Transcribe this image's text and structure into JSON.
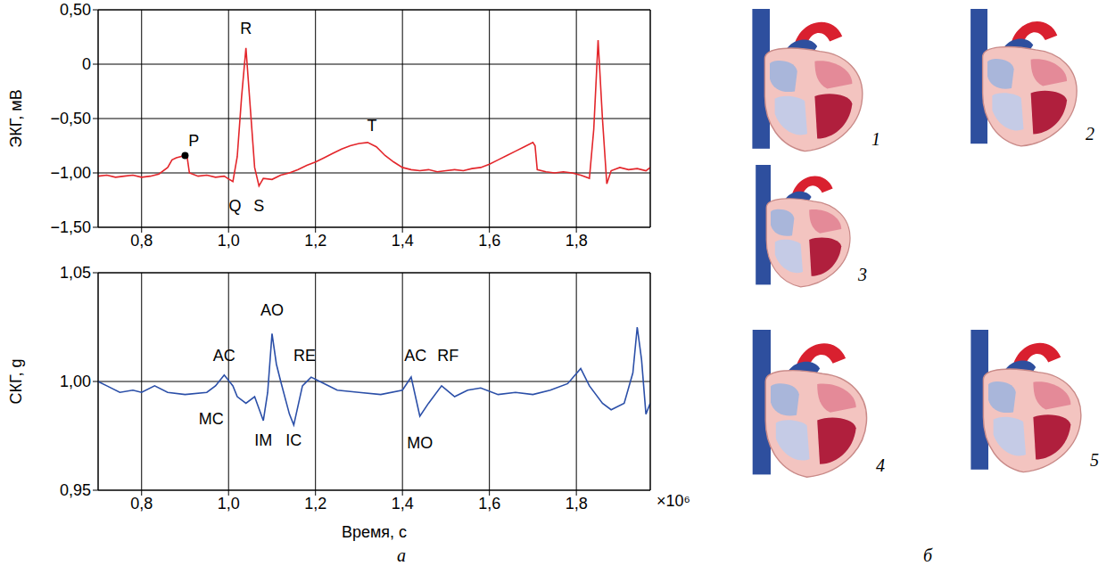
{
  "chart_data": [
    {
      "type": "line",
      "ylabel": "ЭКГ, мВ",
      "color": "#e3262b",
      "grid": true,
      "xlim": [
        0.7,
        1.97
      ],
      "xticks": [
        {
          "value": 0.8,
          "label": "0,8"
        },
        {
          "value": 1.0,
          "label": "1,0"
        },
        {
          "value": 1.2,
          "label": "1,2"
        },
        {
          "value": 1.4,
          "label": "1,4"
        },
        {
          "value": 1.6,
          "label": "1,6"
        },
        {
          "value": 1.8,
          "label": "1,8"
        }
      ],
      "ylim": [
        -1.5,
        0.5
      ],
      "yticks": [
        {
          "value": -1.5,
          "label": "−1,50"
        },
        {
          "value": -1.0,
          "label": "−1,00"
        },
        {
          "value": -0.5,
          "label": "−0,50"
        },
        0,
        {
          "value": 0.5,
          "label": "0,50"
        }
      ],
      "x": [
        0.7,
        0.72,
        0.74,
        0.76,
        0.78,
        0.8,
        0.82,
        0.84,
        0.86,
        0.87,
        0.88,
        0.9,
        0.905,
        0.91,
        0.93,
        0.95,
        0.97,
        0.99,
        1.01,
        1.02,
        1.03,
        1.04,
        1.05,
        1.06,
        1.07,
        1.08,
        1.1,
        1.12,
        1.14,
        1.16,
        1.18,
        1.2,
        1.22,
        1.24,
        1.26,
        1.28,
        1.3,
        1.32,
        1.34,
        1.36,
        1.38,
        1.4,
        1.42,
        1.44,
        1.46,
        1.48,
        1.5,
        1.52,
        1.54,
        1.56,
        1.58,
        1.6,
        1.62,
        1.64,
        1.66,
        1.68,
        1.7,
        1.705,
        1.71,
        1.73,
        1.75,
        1.77,
        1.79,
        1.81,
        1.83,
        1.84,
        1.85,
        1.86,
        1.87,
        1.88,
        1.9,
        1.92,
        1.94,
        1.96,
        1.97
      ],
      "values": [
        -1.03,
        -1.02,
        -1.04,
        -1.03,
        -1.02,
        -1.04,
        -1.03,
        -1.01,
        -0.95,
        -0.88,
        -0.86,
        -0.84,
        -0.86,
        -1.0,
        -1.03,
        -1.02,
        -1.04,
        -1.03,
        -1.08,
        -0.85,
        -0.3,
        0.15,
        -0.4,
        -0.95,
        -1.12,
        -1.05,
        -1.06,
        -1.02,
        -1.0,
        -0.97,
        -0.93,
        -0.9,
        -0.86,
        -0.82,
        -0.78,
        -0.75,
        -0.73,
        -0.72,
        -0.76,
        -0.84,
        -0.9,
        -0.95,
        -0.97,
        -0.98,
        -0.97,
        -0.99,
        -0.98,
        -0.97,
        -0.98,
        -0.96,
        -0.95,
        -0.92,
        -0.88,
        -0.84,
        -0.8,
        -0.76,
        -0.72,
        -0.75,
        -0.97,
        -0.99,
        -1.0,
        -0.99,
        -1.0,
        -1.02,
        -1.05,
        -0.6,
        0.22,
        -0.5,
        -1.1,
        -0.98,
        -0.95,
        -0.97,
        -0.96,
        -0.98,
        -0.95
      ],
      "annotations": [
        {
          "text": "P",
          "x": 0.92,
          "y": -0.7,
          "point": [
            0.9,
            -0.84
          ]
        },
        {
          "text": "R",
          "x": 1.04,
          "y": 0.33
        },
        {
          "text": "Q",
          "x": 1.015,
          "y": -1.3
        },
        {
          "text": "S",
          "x": 1.07,
          "y": -1.3
        },
        {
          "text": "T",
          "x": 1.33,
          "y": -0.56
        }
      ]
    },
    {
      "type": "line",
      "xlabel": "Время, с",
      "ylabel": "СКГ, g",
      "color": "#2b4fa8",
      "grid": true,
      "x_multiplier": "×10⁶",
      "xlim": [
        0.7,
        1.97
      ],
      "xticks": [
        {
          "value": 0.8,
          "label": "0,8"
        },
        {
          "value": 1.0,
          "label": "1,0"
        },
        {
          "value": 1.2,
          "label": "1,2"
        },
        {
          "value": 1.4,
          "label": "1,4"
        },
        {
          "value": 1.6,
          "label": "1,6"
        },
        {
          "value": 1.8,
          "label": "1,8"
        }
      ],
      "ylim": [
        0.95,
        1.05
      ],
      "yticks": [
        {
          "value": 0.95,
          "label": "0,95"
        },
        {
          "value": 1.0,
          "label": "1,00"
        },
        {
          "value": 1.05,
          "label": "1,05"
        }
      ],
      "x": [
        0.7,
        0.72,
        0.75,
        0.78,
        0.8,
        0.83,
        0.86,
        0.9,
        0.95,
        0.97,
        0.99,
        1.01,
        1.02,
        1.04,
        1.06,
        1.08,
        1.09,
        1.1,
        1.11,
        1.12,
        1.14,
        1.15,
        1.17,
        1.19,
        1.21,
        1.25,
        1.3,
        1.35,
        1.4,
        1.42,
        1.44,
        1.46,
        1.49,
        1.52,
        1.55,
        1.58,
        1.62,
        1.66,
        1.7,
        1.74,
        1.78,
        1.81,
        1.83,
        1.86,
        1.88,
        1.91,
        1.93,
        1.94,
        1.95,
        1.96,
        1.97
      ],
      "values": [
        1.0,
        0.998,
        0.995,
        0.996,
        0.995,
        0.998,
        0.995,
        0.994,
        0.995,
        0.998,
        1.003,
        0.998,
        0.993,
        0.99,
        0.993,
        0.982,
        0.995,
        1.022,
        1.008,
        1.0,
        0.985,
        0.98,
        0.998,
        1.002,
        1.0,
        0.996,
        0.995,
        0.994,
        0.996,
        1.002,
        0.984,
        0.99,
        0.998,
        0.993,
        0.996,
        0.997,
        0.994,
        0.995,
        0.994,
        0.996,
        0.999,
        1.006,
        0.998,
        0.99,
        0.987,
        0.99,
        1.004,
        1.025,
        1.01,
        0.985,
        0.99
      ],
      "annotations": [
        {
          "text": "AC",
          "x": 0.99,
          "y": 1.012
        },
        {
          "text": "MC",
          "x": 0.96,
          "y": 0.983
        },
        {
          "text": "AO",
          "x": 1.1,
          "y": 1.033
        },
        {
          "text": "RE",
          "x": 1.175,
          "y": 1.012
        },
        {
          "text": "IM",
          "x": 1.08,
          "y": 0.973
        },
        {
          "text": "IC",
          "x": 1.15,
          "y": 0.973
        },
        {
          "text": "AC",
          "x": 1.43,
          "y": 1.012
        },
        {
          "text": "RF",
          "x": 1.505,
          "y": 1.012
        },
        {
          "text": "MO",
          "x": 1.44,
          "y": 0.972
        }
      ]
    }
  ],
  "figure": {
    "panel_a": "а",
    "panel_b": "б",
    "hearts": [
      "1",
      "2",
      "3",
      "4",
      "5"
    ]
  }
}
